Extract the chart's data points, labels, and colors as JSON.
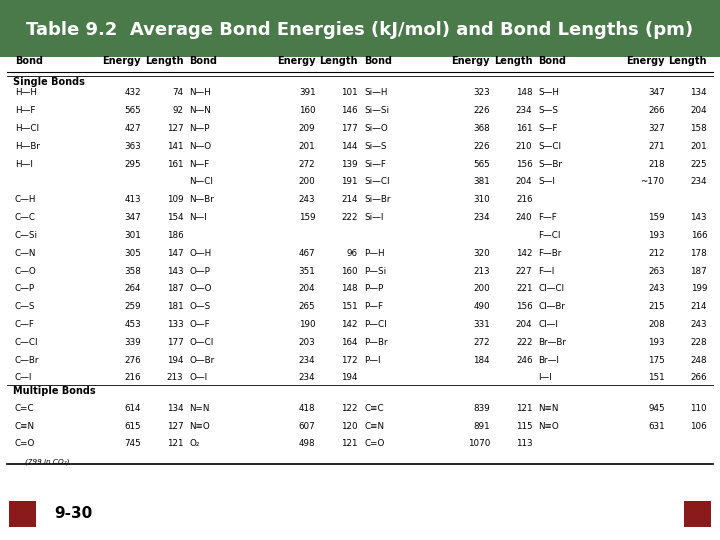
{
  "title": "Table 9.2  Average Bond Energies (kJ/mol) and Bond Lengths (pm)",
  "title_bg_color": "#4a7a4a",
  "title_text_color": "#ffffff",
  "header": [
    "Bond",
    "Energy",
    "Length",
    "Bond",
    "Energy",
    "Length",
    "Bond",
    "Energy",
    "Length",
    "Bond",
    "Energy",
    "Length"
  ],
  "section_single": "Single Bonds",
  "section_multiple": "Multiple Bonds",
  "col1": [
    [
      "H—H",
      "432",
      "74"
    ],
    [
      "H—F",
      "565",
      "92"
    ],
    [
      "H—Cl",
      "427",
      "127"
    ],
    [
      "H—Br",
      "363",
      "141"
    ],
    [
      "H—I",
      "295",
      "161"
    ],
    [
      "",
      "",
      ""
    ],
    [
      "C—H",
      "413",
      "109"
    ],
    [
      "C—C",
      "347",
      "154"
    ],
    [
      "C—Si",
      "301",
      "186"
    ],
    [
      "C—N",
      "305",
      "147"
    ],
    [
      "C—O",
      "358",
      "143"
    ],
    [
      "C—P",
      "264",
      "187"
    ],
    [
      "C—S",
      "259",
      "181"
    ],
    [
      "C—F",
      "453",
      "133"
    ],
    [
      "C—Cl",
      "339",
      "177"
    ],
    [
      "C—Br",
      "276",
      "194"
    ],
    [
      "C—I",
      "216",
      "213"
    ]
  ],
  "col2": [
    [
      "N—H",
      "391",
      "101"
    ],
    [
      "N—N",
      "160",
      "146"
    ],
    [
      "N—P",
      "209",
      "177"
    ],
    [
      "N—O",
      "201",
      "144"
    ],
    [
      "N—F",
      "272",
      "139"
    ],
    [
      "N—Cl",
      "200",
      "191"
    ],
    [
      "N—Br",
      "243",
      "214"
    ],
    [
      "N—I",
      "159",
      "222"
    ],
    [
      "",
      "",
      ""
    ],
    [
      "O—H",
      "467",
      "96"
    ],
    [
      "O—P",
      "351",
      "160"
    ],
    [
      "O—O",
      "204",
      "148"
    ],
    [
      "O—S",
      "265",
      "151"
    ],
    [
      "O—F",
      "190",
      "142"
    ],
    [
      "O—Cl",
      "203",
      "164"
    ],
    [
      "O—Br",
      "234",
      "172"
    ],
    [
      "O—I",
      "234",
      "194"
    ]
  ],
  "col3": [
    [
      "Si—H",
      "323",
      "148"
    ],
    [
      "Si—Si",
      "226",
      "234"
    ],
    [
      "Si—O",
      "368",
      "161"
    ],
    [
      "Si—S",
      "226",
      "210"
    ],
    [
      "Si—F",
      "565",
      "156"
    ],
    [
      "Si—Cl",
      "381",
      "204"
    ],
    [
      "Si—Br",
      "310",
      "216"
    ],
    [
      "Si—I",
      "234",
      "240"
    ],
    [
      "",
      "",
      ""
    ],
    [
      "P—H",
      "320",
      "142"
    ],
    [
      "P—Si",
      "213",
      "227"
    ],
    [
      "P—P",
      "200",
      "221"
    ],
    [
      "P—F",
      "490",
      "156"
    ],
    [
      "P—Cl",
      "331",
      "204"
    ],
    [
      "P—Br",
      "272",
      "222"
    ],
    [
      "P—I",
      "184",
      "246"
    ],
    [
      "",
      "",
      ""
    ]
  ],
  "col4": [
    [
      "S—H",
      "347",
      "134"
    ],
    [
      "S—S",
      "266",
      "204"
    ],
    [
      "S—F",
      "327",
      "158"
    ],
    [
      "S—Cl",
      "271",
      "201"
    ],
    [
      "S—Br",
      "218",
      "225"
    ],
    [
      "S—I",
      "~170",
      "234"
    ],
    [
      "",
      "",
      ""
    ],
    [
      "F—F",
      "159",
      "143"
    ],
    [
      "F—Cl",
      "193",
      "166"
    ],
    [
      "F—Br",
      "212",
      "178"
    ],
    [
      "F—I",
      "263",
      "187"
    ],
    [
      "Cl—Cl",
      "243",
      "199"
    ],
    [
      "Cl—Br",
      "215",
      "214"
    ],
    [
      "Cl—I",
      "208",
      "243"
    ],
    [
      "Br—Br",
      "193",
      "228"
    ],
    [
      "Br—I",
      "175",
      "248"
    ],
    [
      "I—I",
      "151",
      "266"
    ]
  ],
  "mult1": [
    [
      "C=C",
      "614",
      "134"
    ],
    [
      "C≡N",
      "615",
      "127"
    ],
    [
      "C=O",
      "745",
      "121"
    ],
    [
      "(799 in CO₂)",
      "",
      ""
    ]
  ],
  "mult2": [
    [
      "N=N",
      "418",
      "122"
    ],
    [
      "N≡O",
      "607",
      "120"
    ],
    [
      "O₂",
      "498",
      "121"
    ],
    [
      "",
      "",
      ""
    ]
  ],
  "mult3": [
    [
      "C≡C",
      "839",
      "121"
    ],
    [
      "C≡N",
      "891",
      "115"
    ],
    [
      "C=O",
      "1070",
      "113"
    ],
    [
      "",
      "",
      ""
    ]
  ],
  "mult4": [
    [
      "N≡N",
      "945",
      "110"
    ],
    [
      "N≡O",
      "631",
      "106"
    ],
    [
      "",
      "",
      ""
    ],
    [
      "",
      "",
      ""
    ]
  ],
  "page_num": "9-30",
  "bg_color": "#ffffff",
  "nav_left_color": "#8b1a1a",
  "nav_right_color": "#8b1a1a"
}
